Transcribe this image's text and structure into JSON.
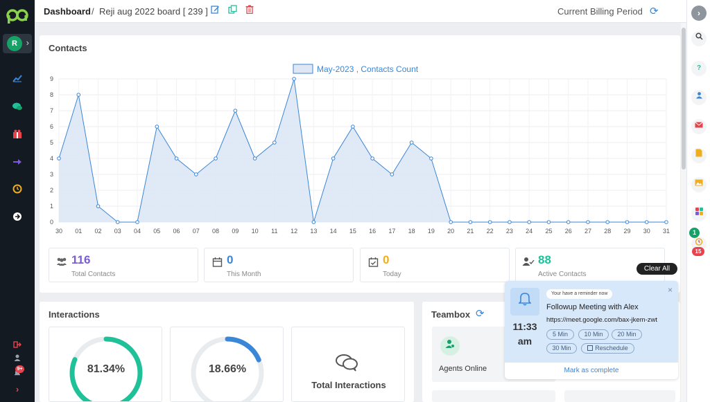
{
  "header": {
    "title": "Dashboard",
    "separator": "/",
    "board": "Reji aug 2022 board [ 239 ]",
    "billing_label": "Current Billing Period"
  },
  "user": {
    "initial": "R"
  },
  "colors": {
    "accent": "#3a86d7",
    "sidebar_bg": "#141a22",
    "brand_green": "#16a267",
    "chart_fill": "#dde7f5",
    "chart_line": "#3a86d7"
  },
  "left_sidebar": {
    "icons": [
      "chart-line-icon",
      "chat-icon",
      "gift-icon",
      "hand-pointer-icon",
      "history-icon",
      "arrow-right-circle-icon"
    ],
    "bottom_icons": [
      "logout-icon",
      "user-icon",
      "bell-icon",
      "chevron-right-icon"
    ],
    "notification_count": "9+"
  },
  "right_sidebar": {
    "icons": [
      "chevron-right-icon",
      "search-icon",
      "help-icon",
      "contact-icon",
      "mail-icon",
      "note-icon",
      "image-icon",
      "apps-icon",
      "alarm-icon"
    ],
    "badge_green": "1",
    "badge_red": "15"
  },
  "contacts": {
    "title": "Contacts",
    "stats": [
      {
        "value": "116",
        "label": "Total Contacts",
        "color": "#7b5cd6",
        "icon": "users-icon"
      },
      {
        "value": "0",
        "label": "This Month",
        "color": "#3a86d7",
        "icon": "calendar-icon"
      },
      {
        "value": "0",
        "label": "Today",
        "color": "#f0ad1e",
        "icon": "calendar-check-icon"
      },
      {
        "value": "88",
        "label": "Active Contacts",
        "color": "#1fc198",
        "icon": "user-check-icon"
      }
    ]
  },
  "chart_data": {
    "type": "area",
    "title": "",
    "xlabel": "",
    "ylabel": "",
    "legend": "top-center",
    "grid": true,
    "ylim": [
      0,
      9
    ],
    "categories": [
      "30",
      "01",
      "02",
      "03",
      "04",
      "05",
      "06",
      "07",
      "08",
      "09",
      "10",
      "11",
      "12",
      "13",
      "14",
      "15",
      "16",
      "17",
      "18",
      "19",
      "20",
      "21",
      "22",
      "23",
      "24",
      "25",
      "26",
      "27",
      "28",
      "29",
      "30",
      "31"
    ],
    "series": [
      {
        "name": "May-2023 , Contacts Count",
        "values": [
          4,
          8,
          1,
          0,
          0,
          6,
          4,
          3,
          4,
          7,
          4,
          5,
          9,
          0,
          4,
          6,
          4,
          3,
          5,
          4,
          0,
          0,
          0,
          0,
          0,
          0,
          0,
          0,
          0,
          0,
          0,
          0
        ]
      }
    ],
    "yticks": [
      0,
      1,
      2,
      3,
      4,
      5,
      6,
      7,
      8,
      9
    ]
  },
  "interactions": {
    "title": "Interactions",
    "items": [
      {
        "label": "81.34%",
        "percent": 81.34,
        "color": "#1fc198"
      },
      {
        "label": "18.66%",
        "percent": 18.66,
        "color": "#3a86d7"
      }
    ],
    "total_label": "Total Interactions"
  },
  "teambox": {
    "title": "Teambox",
    "agents_online_label": "Agents Online"
  },
  "notifications": {
    "clear_all": "Clear All",
    "reminder": {
      "pill": "Your have a reminder now",
      "title": "Followup Meeting with Alex",
      "url": "https://meet.google.com/bax-jkem-zwt",
      "time": "11:33",
      "ampm": "am",
      "snooze": [
        "5 Min",
        "10 Min",
        "20 Min",
        "30 Min"
      ],
      "reschedule": "Reschedule",
      "complete": "Mark as complete",
      "close": "×"
    }
  }
}
